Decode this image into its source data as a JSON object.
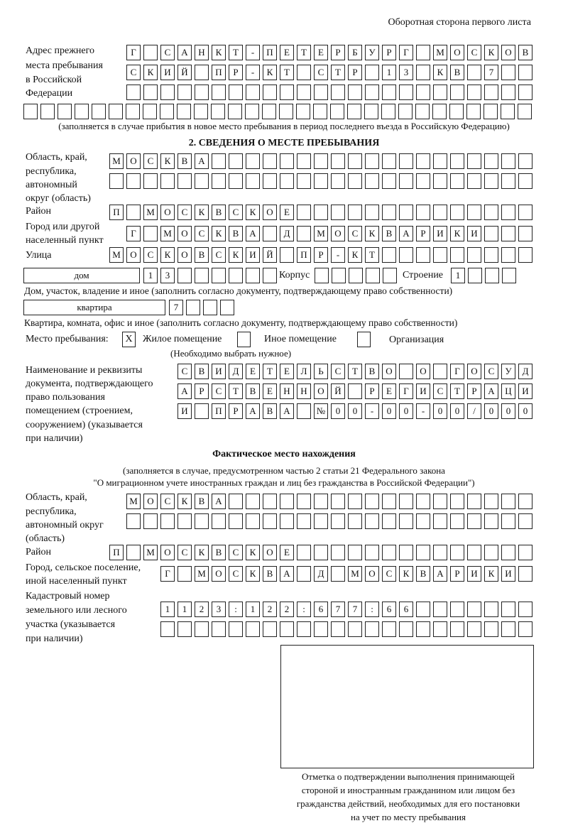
{
  "header": "Оборотная сторона первого листа",
  "prev_address": {
    "label": [
      "Адрес прежнего",
      "места пребывания",
      "в Российской",
      "Федерации"
    ],
    "rows": [
      [
        "Г",
        "",
        "С",
        "А",
        "Н",
        "К",
        "Т",
        "-",
        "П",
        "Е",
        "Т",
        "Е",
        "Р",
        "Б",
        "У",
        "Р",
        "Г",
        "",
        "М",
        "О",
        "С",
        "К",
        "О",
        "В"
      ],
      [
        "С",
        "К",
        "И",
        "Й",
        "",
        "П",
        "Р",
        "-",
        "К",
        "Т",
        "",
        "С",
        "Т",
        "Р",
        "",
        "1",
        "3",
        "",
        "К",
        "В",
        "",
        "7",
        "",
        ""
      ],
      [
        "",
        "",
        "",
        "",
        "",
        "",
        "",
        "",
        "",
        "",
        "",
        "",
        "",
        "",
        "",
        "",
        "",
        "",
        "",
        "",
        "",
        "",
        "",
        ""
      ],
      [
        "",
        "",
        "",
        "",
        "",
        "",
        "",
        "",
        "",
        "",
        "",
        "",
        "",
        "",
        "",
        "",
        "",
        "",
        "",
        "",
        "",
        "",
        "",
        "",
        "",
        "",
        "",
        "",
        "",
        ""
      ]
    ],
    "note": "(заполняется в случае прибытия в новое место пребывания в период последнего въезда в Российскую Федерацию)"
  },
  "section2": {
    "title": "2. СВЕДЕНИЯ О МЕСТЕ ПРЕБЫВАНИЯ",
    "region_label": [
      "Область, край,",
      "республика,",
      "автономный",
      "округ (область)"
    ],
    "region_rows": [
      [
        "М",
        "О",
        "С",
        "К",
        "В",
        "А",
        "",
        "",
        "",
        "",
        "",
        "",
        "",
        "",
        "",
        "",
        "",
        "",
        "",
        "",
        "",
        "",
        "",
        "",
        ""
      ],
      [
        "",
        "",
        "",
        "",
        "",
        "",
        "",
        "",
        "",
        "",
        "",
        "",
        "",
        "",
        "",
        "",
        "",
        "",
        "",
        "",
        "",
        "",
        "",
        "",
        ""
      ]
    ],
    "district_label": "Район",
    "district": [
      "П",
      "",
      "М",
      "О",
      "С",
      "К",
      "В",
      "С",
      "К",
      "О",
      "Е",
      "",
      "",
      "",
      "",
      "",
      "",
      "",
      "",
      "",
      "",
      "",
      "",
      "",
      ""
    ],
    "city_label": [
      "Город или другой",
      "населенный пункт"
    ],
    "city": [
      "Г",
      "",
      "М",
      "О",
      "С",
      "К",
      "В",
      "А",
      "",
      "Д",
      "",
      "М",
      "О",
      "С",
      "К",
      "В",
      "А",
      "Р",
      "И",
      "К",
      "И",
      "",
      "",
      ""
    ],
    "street_label": "Улица",
    "street": [
      "М",
      "О",
      "С",
      "К",
      "О",
      "В",
      "С",
      "К",
      "И",
      "Й",
      "",
      "П",
      "Р",
      "-",
      "К",
      "Т",
      "",
      "",
      "",
      "",
      "",
      "",
      "",
      "",
      ""
    ],
    "house_type": "дом",
    "house": [
      "1",
      "3",
      "",
      "",
      "",
      "",
      "",
      ""
    ],
    "korpus_label": "Корпус",
    "korpus": [
      "",
      "",
      "",
      "",
      ""
    ],
    "building_label": "Строение",
    "building": [
      "1",
      "",
      "",
      ""
    ],
    "house_note": "Дом, участок, владение и иное (заполнить согласно документу, подтверждающему право собственности)",
    "flat_type": "квартира",
    "flat": [
      "7",
      "",
      "",
      ""
    ],
    "flat_note": "Квартира, комната, офис и иное (заполнить согласно документу, подтверждающему право собственности)",
    "stay_label": "Место пребывания:",
    "stay_options": [
      {
        "label": "Жилое помещение",
        "mark": "X"
      },
      {
        "label": "Иное помещение",
        "mark": ""
      },
      {
        "label": "Организация",
        "mark": ""
      }
    ],
    "stay_note": "(Необходимо выбрать нужное)",
    "doc_label": [
      "Наименование и реквизиты",
      "документа, подтверждающего",
      "право пользования",
      "помещением (строением,",
      "сооружением) (указывается",
      "при наличии)"
    ],
    "doc_rows": [
      [
        "С",
        "В",
        "И",
        "Д",
        "Е",
        "Т",
        "Е",
        "Л",
        "Ь",
        "С",
        "Т",
        "В",
        "О",
        "",
        "О",
        "",
        "Г",
        "О",
        "С",
        "У",
        "Д"
      ],
      [
        "А",
        "Р",
        "С",
        "Т",
        "В",
        "Е",
        "Н",
        "Н",
        "О",
        "Й",
        "",
        "Р",
        "Е",
        "Г",
        "И",
        "С",
        "Т",
        "Р",
        "А",
        "Ц",
        "И"
      ],
      [
        "И",
        "",
        "П",
        "Р",
        "А",
        "В",
        "А",
        "",
        "№",
        "0",
        "0",
        "-",
        "0",
        "0",
        "-",
        "0",
        "0",
        "/",
        "0",
        "0",
        "0"
      ]
    ]
  },
  "actual": {
    "title": "Фактическое место нахождения",
    "note": [
      "(заполняется в случае, предусмотренном частью 2 статьи 21 Федерального закона",
      "\"О миграционном учете иностранных граждан и лиц без гражданства в Российской Федерации\")"
    ],
    "region_label": [
      "Область, край,",
      "республика,",
      "автономный округ",
      "(область)"
    ],
    "region_rows": [
      [
        "М",
        "О",
        "С",
        "К",
        "В",
        "А",
        "",
        "",
        "",
        "",
        "",
        "",
        "",
        "",
        "",
        "",
        "",
        "",
        "",
        "",
        "",
        "",
        "",
        ""
      ],
      [
        "",
        "",
        "",
        "",
        "",
        "",
        "",
        "",
        "",
        "",
        "",
        "",
        "",
        "",
        "",
        "",
        "",
        "",
        "",
        "",
        "",
        "",
        "",
        ""
      ]
    ],
    "district_label": "Район",
    "district": [
      "П",
      "",
      "М",
      "О",
      "С",
      "К",
      "В",
      "С",
      "К",
      "О",
      "Е",
      "",
      "",
      "",
      "",
      "",
      "",
      "",
      "",
      "",
      "",
      "",
      "",
      "",
      ""
    ],
    "city_label": [
      "Город, сельское поселение,",
      "иной населенный пункт"
    ],
    "city": [
      "Г",
      "",
      "М",
      "О",
      "С",
      "К",
      "В",
      "А",
      "",
      "Д",
      "",
      "М",
      "О",
      "С",
      "К",
      "В",
      "А",
      "Р",
      "И",
      "К",
      "И",
      ""
    ],
    "cadastral_label": [
      "Кадастровый номер",
      "земельного или лесного",
      "участка (указывается",
      "при наличии)"
    ],
    "cadastral_rows": [
      [
        "1",
        "1",
        "2",
        "3",
        ":",
        "1",
        "2",
        "2",
        ":",
        "6",
        "7",
        "7",
        ":",
        "6",
        "6",
        "",
        "",
        "",
        "",
        "",
        "",
        ""
      ],
      [
        "",
        "",
        "",
        "",
        "",
        "",
        "",
        "",
        "",
        "",
        "",
        "",
        "",
        "",
        "",
        "",
        "",
        "",
        "",
        "",
        "",
        ""
      ]
    ]
  },
  "stamp_caption": [
    "Отметка о подтверждении выполнения принимающей",
    "стороной и иностранным гражданином или лицом без",
    "гражданства действий, необходимых для его постановки",
    "на учет по месту пребывания"
  ]
}
